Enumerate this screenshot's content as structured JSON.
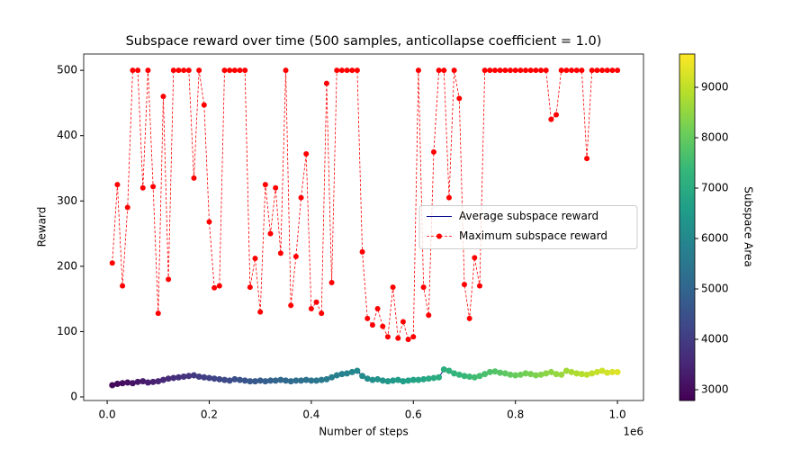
{
  "chart_data": {
    "type": "line",
    "title": "Subspace reward over time (500 samples, anticollapse coefficient = 1.0)",
    "x_label": "Number of steps",
    "x_offset_label": "1e6",
    "y_label": "Reward",
    "x": [
      0.01,
      0.02,
      0.03,
      0.04,
      0.05,
      0.06,
      0.07,
      0.08,
      0.09,
      0.1,
      0.11,
      0.12,
      0.13,
      0.14,
      0.15,
      0.16,
      0.17,
      0.18,
      0.19,
      0.2,
      0.21,
      0.22,
      0.23,
      0.24,
      0.25,
      0.26,
      0.27,
      0.28,
      0.29,
      0.3,
      0.31,
      0.32,
      0.33,
      0.34,
      0.35,
      0.36,
      0.37,
      0.38,
      0.39,
      0.4,
      0.41,
      0.42,
      0.43,
      0.44,
      0.45,
      0.46,
      0.47,
      0.48,
      0.49,
      0.5,
      0.51,
      0.52,
      0.53,
      0.54,
      0.55,
      0.56,
      0.57,
      0.58,
      0.59,
      0.6,
      0.61,
      0.62,
      0.63,
      0.64,
      0.65,
      0.66,
      0.67,
      0.68,
      0.69,
      0.7,
      0.71,
      0.72,
      0.73,
      0.74,
      0.75,
      0.76,
      0.77,
      0.78,
      0.79,
      0.8,
      0.81,
      0.82,
      0.83,
      0.84,
      0.85,
      0.86,
      0.87,
      0.88,
      0.89,
      0.9,
      0.91,
      0.92,
      0.93,
      0.94,
      0.95,
      0.96,
      0.97,
      0.98,
      0.99,
      1.0
    ],
    "xlim": [
      -0.046,
      1.051
    ],
    "xticks": [
      {
        "value": 0,
        "label": "0.0"
      },
      0.2,
      0.4,
      0.6,
      0.8,
      {
        "value": 1,
        "label": "1.0"
      }
    ],
    "ylim": [
      -5.5,
      525
    ],
    "yticks": [
      0,
      100,
      200,
      300,
      400,
      500
    ],
    "legend": "center right",
    "series": [
      {
        "name": "Average subspace reward",
        "color": "#00008b",
        "values": [
          18,
          20,
          21,
          22,
          21,
          23,
          24,
          22,
          23,
          24,
          26,
          28,
          29,
          30,
          31,
          32,
          33,
          31,
          30,
          29,
          28,
          27,
          26,
          25,
          27,
          26,
          25,
          24,
          24,
          25,
          24,
          25,
          25,
          26,
          25,
          24,
          25,
          25,
          26,
          25,
          25,
          26,
          27,
          30,
          33,
          35,
          36,
          38,
          40,
          32,
          28,
          26,
          27,
          25,
          24,
          25,
          26,
          24,
          25,
          26,
          26,
          27,
          28,
          29,
          30,
          42,
          40,
          36,
          34,
          32,
          31,
          30,
          32,
          35,
          38,
          39,
          37,
          36,
          34,
          33,
          34,
          36,
          35,
          33,
          34,
          36,
          38,
          35,
          34,
          40,
          38,
          36,
          35,
          34,
          36,
          38,
          40,
          37,
          38,
          38
        ],
        "color_values": [
          2900,
          2965,
          3030,
          3095,
          3160,
          3225,
          3290,
          3355,
          3420,
          3485,
          3550,
          3615,
          3680,
          3745,
          3810,
          3875,
          3940,
          4005,
          4070,
          4135,
          4200,
          4265,
          4330,
          4395,
          4460,
          4525,
          4590,
          4655,
          4720,
          4785,
          4850,
          4915,
          4980,
          5045,
          5110,
          5175,
          5240,
          5305,
          5370,
          5435,
          5500,
          5565,
          5630,
          5695,
          5760,
          5825,
          5890,
          5955,
          6020,
          6085,
          6150,
          6215,
          6280,
          6345,
          6410,
          6475,
          6540,
          6605,
          6670,
          6735,
          6800,
          6865,
          6930,
          6995,
          7060,
          7125,
          7190,
          7255,
          7320,
          7385,
          7450,
          7515,
          7580,
          7645,
          7710,
          7775,
          7840,
          7905,
          7970,
          8035,
          8100,
          8165,
          8230,
          8295,
          8360,
          8425,
          8490,
          8555,
          8620,
          8685,
          8750,
          8815,
          8880,
          8945,
          9010,
          9075,
          9140,
          9205,
          9270,
          9335
        ]
      },
      {
        "name": "Maximum subspace reward",
        "color": "#ff0000",
        "values": [
          205,
          325,
          170,
          290,
          500,
          500,
          320,
          500,
          322,
          128,
          460,
          180,
          500,
          500,
          500,
          500,
          335,
          500,
          447,
          268,
          167,
          170,
          500,
          500,
          500,
          500,
          500,
          168,
          212,
          130,
          325,
          250,
          320,
          220,
          500,
          140,
          215,
          305,
          372,
          135,
          145,
          128,
          480,
          175,
          500,
          500,
          500,
          500,
          500,
          222,
          120,
          110,
          135,
          108,
          92,
          168,
          90,
          115,
          88,
          92,
          500,
          168,
          125,
          375,
          500,
          500,
          305,
          500,
          457,
          172,
          120,
          213,
          170,
          500,
          500,
          500,
          500,
          500,
          500,
          500,
          500,
          500,
          500,
          500,
          500,
          500,
          425,
          432,
          500,
          500,
          500,
          500,
          500,
          365,
          500,
          500,
          500,
          500,
          500,
          500
        ]
      }
    ],
    "colorbar": {
      "label": "Subspace Area",
      "lim": [
        2786,
        9661
      ],
      "ticks": [
        3000,
        4000,
        5000,
        6000,
        7000,
        8000,
        9000
      ],
      "colormap": [
        "#440154",
        "#482878",
        "#3e4989",
        "#31688e",
        "#26828e",
        "#1f9e89",
        "#35b779",
        "#6ece58",
        "#b5de2b",
        "#fde725"
      ]
    }
  }
}
